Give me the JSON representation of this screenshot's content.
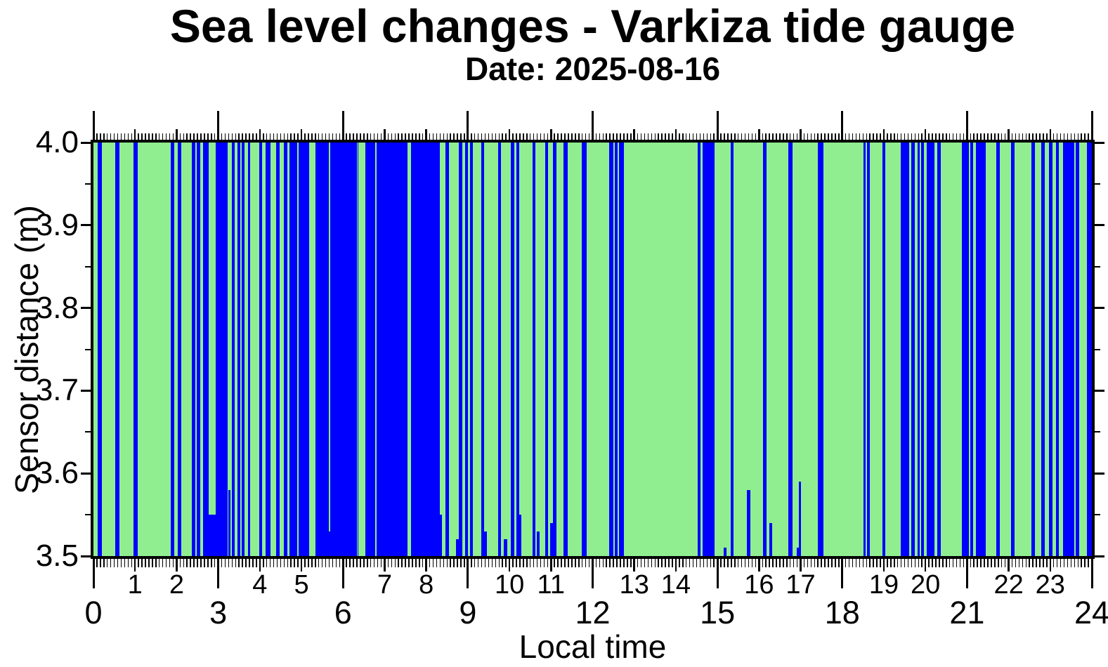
{
  "chart_data": {
    "type": "bar",
    "title": "Sea level changes - Varkiza tide gauge",
    "subtitle": "Date: 2025-08-16",
    "xlabel": "Local time",
    "ylabel": "Sensor distance (m)",
    "xlim": [
      0,
      24
    ],
    "ylim": [
      3.5,
      4.0
    ],
    "grid": false,
    "legend": null,
    "x_minor_tick_minutes": 5,
    "y_major_tick_step": 0.1,
    "y_minor_tick_step": 0.05,
    "colors": {
      "plot_background": "#90EE90",
      "bar": "#0000FF",
      "frame": "#000000",
      "page_background": "#FFFFFF",
      "text": "#000000"
    },
    "y_ticks": [
      {
        "value": 3.5,
        "label": "3.5"
      },
      {
        "value": 3.6,
        "label": "3.6"
      },
      {
        "value": 3.7,
        "label": "3.7"
      },
      {
        "value": 3.8,
        "label": "3.8"
      },
      {
        "value": 3.9,
        "label": "3.9"
      },
      {
        "value": 4.0,
        "label": "4.0"
      }
    ],
    "x_hour_labels": [
      {
        "hour": 1,
        "label": "1"
      },
      {
        "hour": 2,
        "label": "2"
      },
      {
        "hour": 4,
        "label": "4"
      },
      {
        "hour": 5,
        "label": "5"
      },
      {
        "hour": 7,
        "label": "7"
      },
      {
        "hour": 8,
        "label": "8"
      },
      {
        "hour": 10,
        "label": "10"
      },
      {
        "hour": 11,
        "label": "11"
      },
      {
        "hour": 13,
        "label": "13"
      },
      {
        "hour": 14,
        "label": "14"
      },
      {
        "hour": 16,
        "label": "16"
      },
      {
        "hour": 17,
        "label": "17"
      },
      {
        "hour": 19,
        "label": "19"
      },
      {
        "hour": 20,
        "label": "20"
      },
      {
        "hour": 22,
        "label": "22"
      },
      {
        "hour": 23,
        "label": "23"
      }
    ],
    "x_major_labels": [
      {
        "hour": 0,
        "label": "0"
      },
      {
        "hour": 3,
        "label": "3"
      },
      {
        "hour": 6,
        "label": "6"
      },
      {
        "hour": 9,
        "label": "9"
      },
      {
        "hour": 12,
        "label": "12"
      },
      {
        "hour": 15,
        "label": "15"
      },
      {
        "hour": 18,
        "label": "18"
      },
      {
        "hour": 21,
        "label": "21"
      },
      {
        "hour": 24,
        "label": "24"
      }
    ],
    "bars": [
      [
        0.1,
        0.21,
        4.0
      ],
      [
        0.53,
        0.63,
        4.0
      ],
      [
        0.97,
        1.06,
        4.0
      ],
      [
        1.85,
        1.95,
        4.0
      ],
      [
        2.02,
        2.11,
        4.0
      ],
      [
        2.36,
        2.45,
        4.0
      ],
      [
        2.49,
        2.56,
        4.0
      ],
      [
        2.64,
        2.77,
        4.0
      ],
      [
        2.77,
        2.94,
        3.55
      ],
      [
        2.94,
        3.23,
        4.0
      ],
      [
        3.24,
        3.3,
        3.58
      ],
      [
        3.32,
        3.4,
        4.0
      ],
      [
        3.47,
        3.53,
        4.0
      ],
      [
        3.57,
        3.64,
        4.0
      ],
      [
        3.71,
        3.77,
        4.0
      ],
      [
        3.99,
        4.06,
        4.0
      ],
      [
        4.14,
        4.25,
        4.0
      ],
      [
        4.39,
        4.48,
        4.0
      ],
      [
        4.57,
        4.67,
        4.0
      ],
      [
        4.72,
        4.9,
        4.0
      ],
      [
        4.93,
        5.18,
        4.0
      ],
      [
        5.34,
        5.66,
        4.0
      ],
      [
        5.66,
        5.7,
        3.53
      ],
      [
        5.7,
        6.34,
        4.0
      ],
      [
        6.35,
        6.37,
        4.0
      ],
      [
        6.53,
        6.77,
        4.0
      ],
      [
        6.8,
        7.55,
        4.0
      ],
      [
        7.64,
        8.32,
        4.0
      ],
      [
        8.32,
        8.38,
        3.55
      ],
      [
        8.47,
        8.55,
        4.0
      ],
      [
        8.71,
        8.79,
        3.52
      ],
      [
        8.79,
        8.87,
        4.0
      ],
      [
        8.94,
        9.01,
        4.0
      ],
      [
        9.05,
        9.12,
        4.0
      ],
      [
        9.32,
        9.39,
        4.0
      ],
      [
        9.39,
        9.46,
        3.53
      ],
      [
        9.73,
        9.8,
        4.0
      ],
      [
        9.87,
        9.94,
        3.52
      ],
      [
        10.04,
        10.11,
        4.0
      ],
      [
        10.16,
        10.23,
        4.0
      ],
      [
        10.23,
        10.28,
        3.55
      ],
      [
        10.55,
        10.62,
        4.0
      ],
      [
        10.66,
        10.72,
        3.53
      ],
      [
        10.86,
        10.92,
        4.0
      ],
      [
        10.98,
        11.05,
        3.54
      ],
      [
        11.05,
        11.13,
        4.0
      ],
      [
        11.3,
        11.4,
        4.0
      ],
      [
        11.74,
        11.86,
        4.0
      ],
      [
        12.4,
        12.49,
        4.0
      ],
      [
        12.53,
        12.6,
        4.0
      ],
      [
        12.64,
        12.75,
        4.0
      ],
      [
        14.53,
        14.6,
        4.0
      ],
      [
        14.64,
        14.93,
        4.0
      ],
      [
        15.15,
        15.21,
        3.51
      ],
      [
        15.32,
        15.39,
        4.0
      ],
      [
        15.71,
        15.79,
        3.58
      ],
      [
        16.1,
        16.18,
        4.0
      ],
      [
        16.24,
        16.32,
        3.54
      ],
      [
        16.71,
        16.8,
        4.0
      ],
      [
        16.9,
        16.95,
        3.51
      ],
      [
        16.95,
        17.01,
        3.59
      ],
      [
        17.41,
        17.55,
        4.0
      ],
      [
        18.51,
        18.57,
        4.0
      ],
      [
        18.59,
        18.67,
        4.0
      ],
      [
        18.96,
        19.04,
        4.0
      ],
      [
        19.4,
        19.61,
        4.0
      ],
      [
        19.66,
        19.74,
        4.0
      ],
      [
        19.81,
        19.87,
        4.0
      ],
      [
        19.9,
        19.97,
        4.0
      ],
      [
        20.03,
        20.21,
        4.0
      ],
      [
        20.29,
        20.37,
        4.0
      ],
      [
        20.88,
        21.04,
        4.0
      ],
      [
        21.07,
        21.15,
        4.0
      ],
      [
        21.21,
        21.45,
        4.0
      ],
      [
        21.7,
        21.79,
        4.0
      ],
      [
        22.06,
        22.14,
        4.0
      ],
      [
        22.54,
        22.63,
        4.0
      ],
      [
        22.79,
        22.87,
        4.0
      ],
      [
        22.97,
        23.05,
        4.0
      ],
      [
        23.14,
        23.21,
        4.0
      ],
      [
        23.3,
        23.58,
        4.0
      ],
      [
        23.61,
        23.69,
        4.0
      ],
      [
        23.88,
        24.0,
        4.0
      ]
    ]
  }
}
